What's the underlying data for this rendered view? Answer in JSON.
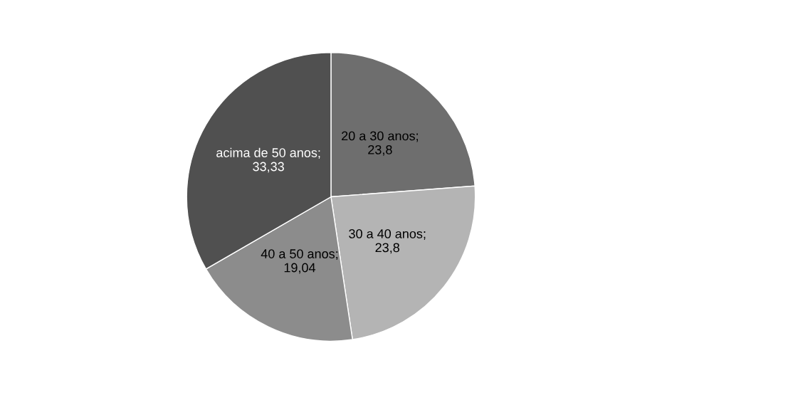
{
  "chart_data": {
    "type": "pie",
    "categories": [
      "20 a 30 anos; 23,8",
      "30 a 40 anos; 23,8",
      "40 a 50 anos; 19,04",
      "acima de 50 anos; 33,33"
    ],
    "values": [
      23.8,
      23.8,
      19.04,
      33.33
    ],
    "colors": [
      "#6e6e6e",
      "#b4b4b4",
      "#8c8c8c",
      "#505050"
    ],
    "legend": false
  }
}
